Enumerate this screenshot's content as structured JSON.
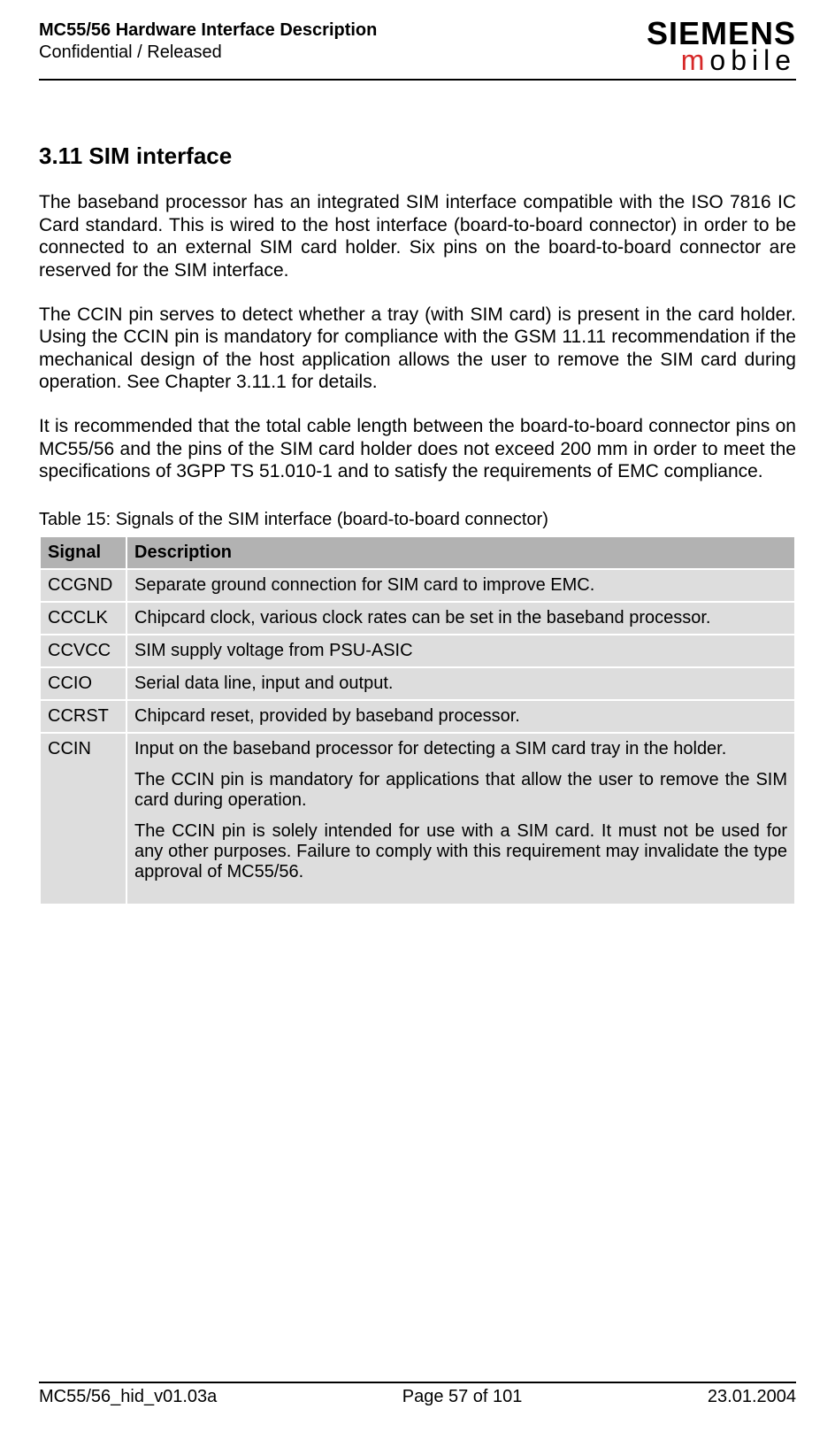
{
  "header": {
    "doc_title": "MC55/56 Hardware Interface Description",
    "doc_status": "Confidential / Released",
    "logo_brand": "SIEMENS",
    "logo_sub_m": "m",
    "logo_sub_rest": "obile"
  },
  "section": {
    "number": "3.11",
    "title": "SIM interface",
    "heading": "3.11  SIM interface"
  },
  "paragraphs": {
    "p1": "The baseband processor has an integrated SIM interface compatible with the ISO 7816 IC Card standard. This is wired to the host interface (board-to-board connector) in order to be connected to an external SIM card holder. Six pins on the board-to-board connector are reserved for the SIM interface.",
    "p2": "The CCIN pin serves to detect whether a tray (with SIM card) is present in the card holder. Using the CCIN pin is mandatory for compliance with the GSM 11.11 recommendation if the mechanical design of the host application allows the user to remove the SIM card during operation. See Chapter 3.11.1 for details.",
    "p3": "It is recommended that the total cable length between the board-to-board connector pins on MC55/56 and the pins of the SIM card holder does not exceed 200 mm in order to meet the specifications of 3GPP TS 51.010-1 and to satisfy the requirements of EMC compliance."
  },
  "table": {
    "caption": "Table 15: Signals of the SIM interface (board-to-board connector)",
    "header_bg": "#b2b2b2",
    "row_bg": "#dddddd",
    "columns": [
      "Signal",
      "Description"
    ],
    "rows": [
      {
        "signal": "CCGND",
        "desc": "Separate ground connection for SIM card to improve EMC."
      },
      {
        "signal": "CCCLK",
        "desc": "Chipcard clock, various clock rates can be set in the baseband processor."
      },
      {
        "signal": "CCVCC",
        "desc": "SIM supply voltage from PSU-ASIC"
      },
      {
        "signal": "CCIO",
        "desc": "Serial data line, input and output."
      },
      {
        "signal": "CCRST",
        "desc": "Chipcard reset, provided by baseband processor."
      }
    ],
    "ccin": {
      "signal": "CCIN",
      "d1": "Input on the baseband processor for detecting a SIM card tray in the holder.",
      "d2": "The CCIN pin is mandatory for applications that allow the user to remove the SIM card during operation.",
      "d3": "The CCIN pin is solely intended for use with a SIM card. It must not be used for any other purposes. Failure to comply with this requirement may invalidate the type approval of MC55/56."
    }
  },
  "footer": {
    "left": "MC55/56_hid_v01.03a",
    "center": "Page 57 of 101",
    "right": "23.01.2004"
  }
}
